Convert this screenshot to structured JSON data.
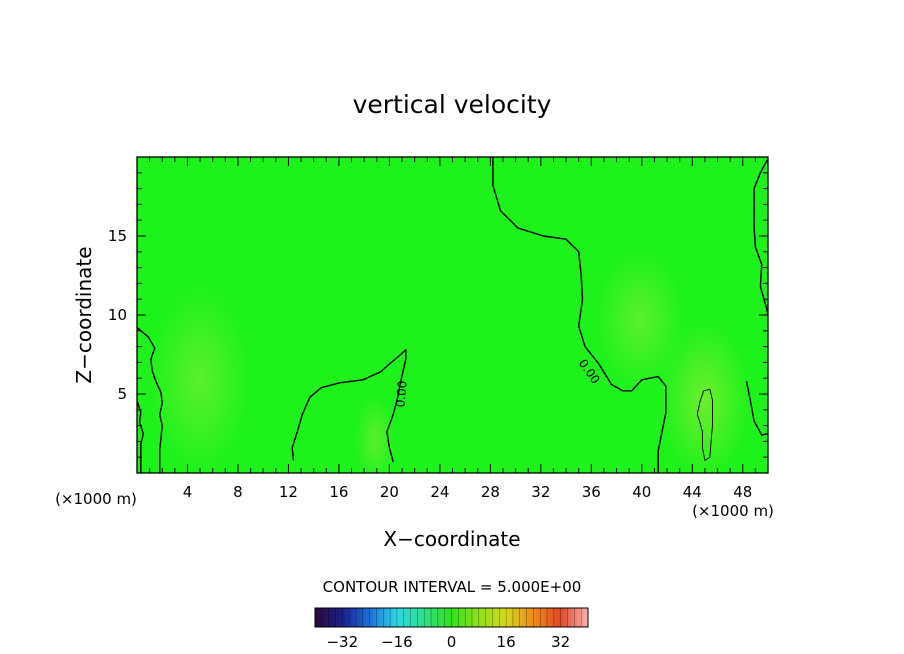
{
  "chart_data": {
    "type": "heatmap",
    "title": "vertical velocity",
    "xlabel": "X−coordinate",
    "ylabel": "Z−coordinate",
    "x_unit": "(×1000 m)",
    "xlim": [
      0,
      50
    ],
    "ylim": [
      0,
      20
    ],
    "x_ticks": [
      4,
      8,
      12,
      16,
      20,
      24,
      28,
      32,
      36,
      40,
      44,
      48
    ],
    "y_ticks": [
      5,
      10,
      15
    ],
    "contour_interval_label": "CONTOUR INTERVAL = 5.000E+00",
    "contour_labels": [
      {
        "text": "0.00",
        "x": 21.0,
        "y": 5.0,
        "rotation": -85
      },
      {
        "text": "0.00",
        "x": 35.8,
        "y": 6.4,
        "rotation": 55
      }
    ],
    "zero_contours": [
      [
        [
          0.0,
          9.2
        ],
        [
          0.9,
          8.6
        ],
        [
          1.4,
          7.9
        ],
        [
          1.1,
          7.2
        ],
        [
          1.2,
          6.5
        ],
        [
          1.5,
          5.8
        ],
        [
          1.9,
          5.1
        ],
        [
          2.0,
          4.4
        ],
        [
          1.8,
          3.7
        ],
        [
          2.0,
          3.0
        ],
        [
          1.9,
          2.2
        ],
        [
          1.8,
          1.5
        ],
        [
          1.8,
          0.0
        ]
      ],
      [
        [
          0.0,
          4.6
        ],
        [
          0.3,
          3.8
        ],
        [
          0.2,
          3.2
        ],
        [
          0.5,
          2.5
        ],
        [
          0.3,
          1.8
        ],
        [
          0.3,
          0.0
        ]
      ],
      [
        [
          12.4,
          0.8
        ],
        [
          12.3,
          1.6
        ],
        [
          12.7,
          2.6
        ],
        [
          13.1,
          3.7
        ],
        [
          13.7,
          4.8
        ],
        [
          14.6,
          5.4
        ],
        [
          16.0,
          5.7
        ],
        [
          17.9,
          5.9
        ],
        [
          19.3,
          6.4
        ],
        [
          20.0,
          6.9
        ],
        [
          20.9,
          7.5
        ],
        [
          21.3,
          7.8
        ],
        [
          21.3,
          7.2
        ],
        [
          20.9,
          5.8
        ],
        [
          20.6,
          4.6
        ],
        [
          20.3,
          3.7
        ],
        [
          19.8,
          2.6
        ],
        [
          20.0,
          1.6
        ],
        [
          20.3,
          0.7
        ]
      ],
      [
        [
          28.2,
          20.0
        ],
        [
          28.2,
          18.2
        ],
        [
          28.8,
          16.6
        ],
        [
          30.2,
          15.5
        ],
        [
          32.2,
          15.0
        ],
        [
          34.0,
          14.8
        ],
        [
          35.0,
          14.0
        ],
        [
          35.2,
          12.5
        ],
        [
          35.3,
          11.0
        ],
        [
          35.0,
          9.3
        ],
        [
          35.5,
          8.0
        ],
        [
          36.6,
          6.9
        ],
        [
          37.6,
          5.6
        ],
        [
          38.5,
          5.2
        ],
        [
          39.2,
          5.2
        ],
        [
          40.0,
          5.9
        ],
        [
          41.3,
          6.1
        ],
        [
          41.9,
          5.5
        ],
        [
          41.9,
          3.8
        ],
        [
          41.6,
          2.6
        ],
        [
          41.3,
          1.4
        ],
        [
          41.3,
          0.0
        ]
      ],
      [
        [
          50.0,
          19.9
        ],
        [
          49.4,
          19.0
        ],
        [
          48.9,
          18.0
        ],
        [
          48.9,
          15.5
        ],
        [
          49.0,
          14.3
        ],
        [
          49.5,
          13.2
        ],
        [
          49.4,
          11.8
        ],
        [
          49.9,
          10.4
        ],
        [
          50.0,
          9.9
        ]
      ],
      [
        [
          48.3,
          5.8
        ],
        [
          48.6,
          4.6
        ],
        [
          48.9,
          3.3
        ],
        [
          49.5,
          2.4
        ],
        [
          50.0,
          2.5
        ]
      ],
      [
        [
          44.9,
          5.2
        ],
        [
          45.4,
          5.3
        ],
        [
          45.6,
          4.6
        ],
        [
          45.6,
          3.9
        ],
        [
          45.6,
          3.0
        ],
        [
          45.5,
          2.1
        ],
        [
          45.4,
          1.0
        ],
        [
          45.0,
          0.8
        ],
        [
          44.8,
          1.6
        ],
        [
          44.8,
          2.6
        ],
        [
          44.6,
          3.2
        ],
        [
          44.4,
          3.7
        ],
        [
          44.6,
          4.5
        ],
        [
          44.9,
          5.2
        ]
      ]
    ],
    "colorbar": {
      "range": [
        -40,
        40
      ],
      "tick_labels": [
        "−32",
        "−16",
        "0",
        "16",
        "32"
      ],
      "tick_values": [
        -32,
        -16,
        0,
        16,
        32
      ],
      "stops": [
        "#2a0a3a",
        "#1a1f8c",
        "#1e6fd9",
        "#2fd7e6",
        "#2fe08a",
        "#33e21a",
        "#8ee21a",
        "#d6d81a",
        "#ee8a1a",
        "#e04a26",
        "#f8b2b2"
      ]
    },
    "field": {
      "background": "#1df21b",
      "lighter_regions_note_color": "#66ee33"
    }
  }
}
